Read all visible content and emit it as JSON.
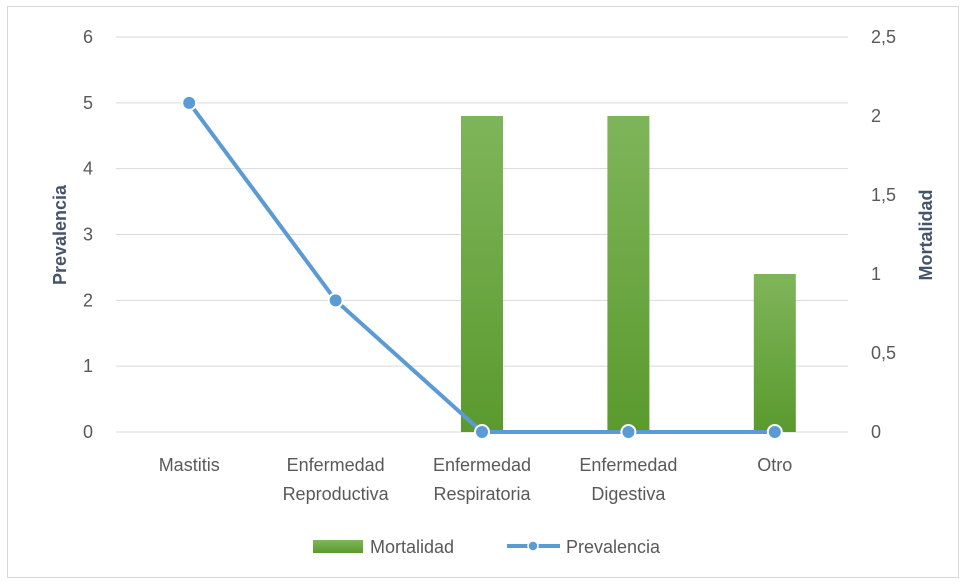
{
  "chart_data": {
    "type": "bar",
    "categories": [
      [
        "Mastitis"
      ],
      [
        "Enfermedad",
        "Reproductiva"
      ],
      [
        "Enfermedad",
        "Respiratoria"
      ],
      [
        "Enfermedad",
        "Digestiva"
      ],
      [
        "Otro"
      ]
    ],
    "series": [
      {
        "name": "Mortalidad",
        "type": "bar",
        "axis": "right",
        "values": [
          0,
          0,
          2,
          2,
          1
        ],
        "color": "#70ad47"
      },
      {
        "name": "Prevalencia",
        "type": "line",
        "axis": "left",
        "values": [
          5,
          2,
          0,
          0,
          0
        ],
        "color": "#5b9bd5"
      }
    ],
    "left_axis": {
      "label": "Prevalencia",
      "ylim": [
        0,
        6
      ],
      "ticks": [
        "0",
        "1",
        "2",
        "3",
        "4",
        "5",
        "6"
      ]
    },
    "right_axis": {
      "label": "Mortalidad",
      "ylim": [
        0,
        2.5
      ],
      "ticks": [
        "0",
        "0,5",
        "1",
        "1,5",
        "2",
        "2,5"
      ]
    },
    "grid": true,
    "legend_position": "bottom"
  }
}
